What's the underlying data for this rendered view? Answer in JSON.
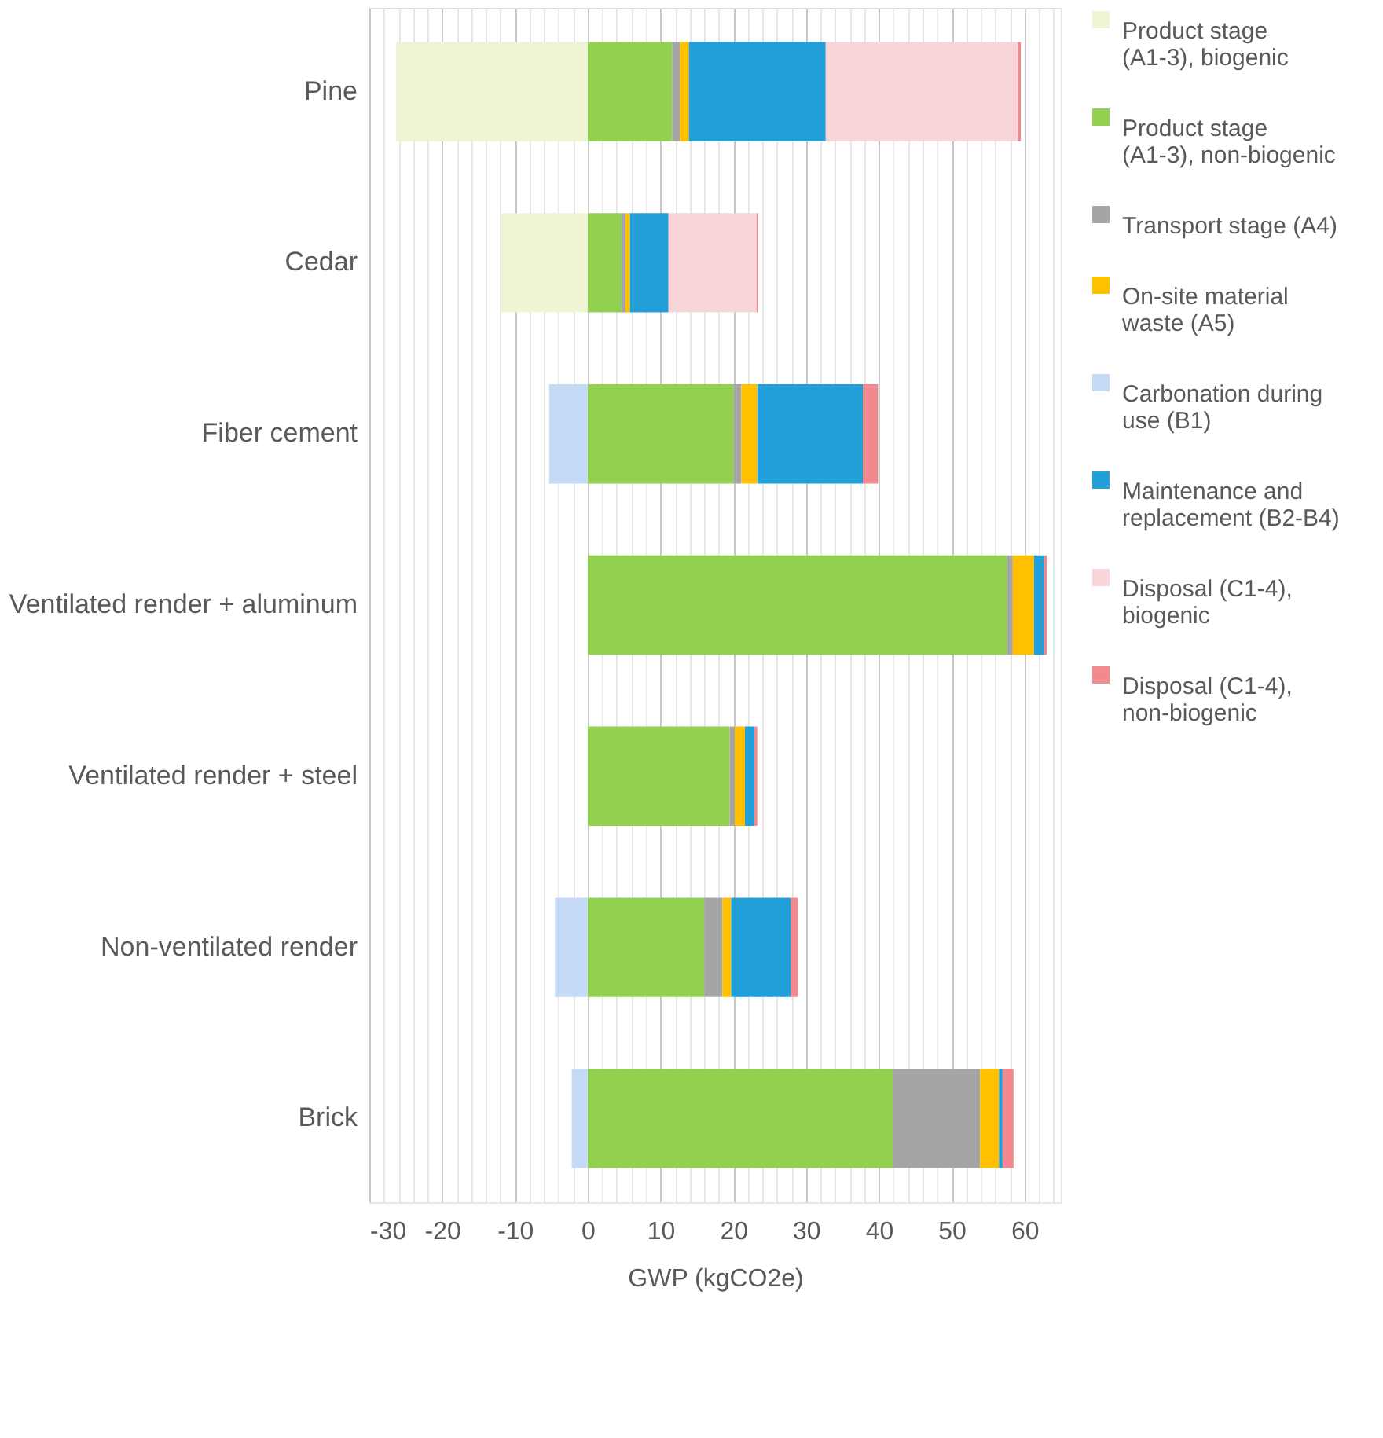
{
  "chart_data": {
    "type": "bar",
    "orientation": "horizontal",
    "stacked": true,
    "categories": [
      "Pine",
      "Cedar",
      "Fiber cement",
      "Ventilated render + aluminum",
      "Ventilated render + steel",
      "Non-ventilated render",
      "Brick"
    ],
    "xlabel": "GWP (kgCO2e)",
    "xlim": [
      -30,
      65
    ],
    "xticks": [
      -30,
      {
        "value": -28,
        "label": null
      },
      {
        "value": -26,
        "label": null
      },
      {
        "value": -24,
        "label": null
      },
      {
        "value": -22,
        "label": null
      },
      -20,
      {
        "value": -18,
        "label": null
      },
      {
        "value": -16,
        "label": null
      },
      {
        "value": -14,
        "label": null
      },
      {
        "value": -12,
        "label": null
      },
      -10,
      {
        "value": -8,
        "label": null
      },
      {
        "value": -6,
        "label": null
      },
      {
        "value": -4,
        "label": null
      },
      {
        "value": -2,
        "label": null
      },
      0,
      {
        "value": 2,
        "label": null
      },
      {
        "value": 4,
        "label": null
      },
      {
        "value": 6,
        "label": null
      },
      {
        "value": 8,
        "label": null
      },
      10,
      {
        "value": 12,
        "label": null
      },
      {
        "value": 14,
        "label": null
      },
      {
        "value": 16,
        "label": null
      },
      {
        "value": 18,
        "label": null
      },
      20,
      {
        "value": 22,
        "label": null
      },
      {
        "value": 24,
        "label": null
      },
      {
        "value": 26,
        "label": null
      },
      {
        "value": 28,
        "label": null
      },
      30,
      {
        "value": 32,
        "label": null
      },
      {
        "value": 34,
        "label": null
      },
      {
        "value": 36,
        "label": null
      },
      {
        "value": 38,
        "label": null
      },
      40,
      {
        "value": 42,
        "label": null
      },
      {
        "value": 44,
        "label": null
      },
      {
        "value": 46,
        "label": null
      },
      {
        "value": 48,
        "label": null
      },
      50,
      {
        "value": 52,
        "label": null
      },
      {
        "value": 54,
        "label": null
      },
      {
        "value": 56,
        "label": null
      },
      {
        "value": 58,
        "label": null
      },
      60,
      {
        "value": 62,
        "label": null
      },
      {
        "value": 64,
        "label": null
      }
    ],
    "grid": "x",
    "legend": "right",
    "series": [
      {
        "name": "Product stage (A1-3), biogenic",
        "color": "#eef4d4",
        "values": [
          -26.3,
          -11.9,
          null,
          null,
          null,
          null,
          null
        ]
      },
      {
        "name": "Product stage (A1-3), non-biogenic",
        "color": "#92d050",
        "values": [
          11.6,
          4.7,
          20.0,
          57.6,
          19.5,
          16.0,
          41.9
        ]
      },
      {
        "name": "Transport stage (A4)",
        "color": "#a5a5a5",
        "values": [
          1.1,
          0.5,
          1.1,
          0.8,
          0.7,
          2.5,
          12.0
        ]
      },
      {
        "name": "On-site material waste (A5)",
        "color": "#ffc000",
        "values": [
          1.2,
          0.6,
          2.2,
          2.9,
          1.4,
          1.2,
          2.6
        ]
      },
      {
        "name": "Carbonation during use (B1)",
        "color": "#c5daf5",
        "values": [
          null,
          null,
          -5.3,
          null,
          null,
          -4.5,
          -2.2
        ]
      },
      {
        "name": "Maintenance and replacement (B2-B4)",
        "color": "#229fd8",
        "values": [
          18.8,
          5.3,
          14.5,
          1.4,
          1.3,
          8.2,
          0.5
        ]
      },
      {
        "name": "Disposal (C1-4), biogenic",
        "color": "#f8d5d8",
        "values": [
          26.4,
          12.1,
          null,
          null,
          null,
          null,
          null
        ]
      },
      {
        "name": "Disposal (C1-4), non-biogenic",
        "color": "#f08a8f",
        "values": [
          0.4,
          0.2,
          2.1,
          0.4,
          0.4,
          1.0,
          1.5
        ]
      }
    ]
  }
}
